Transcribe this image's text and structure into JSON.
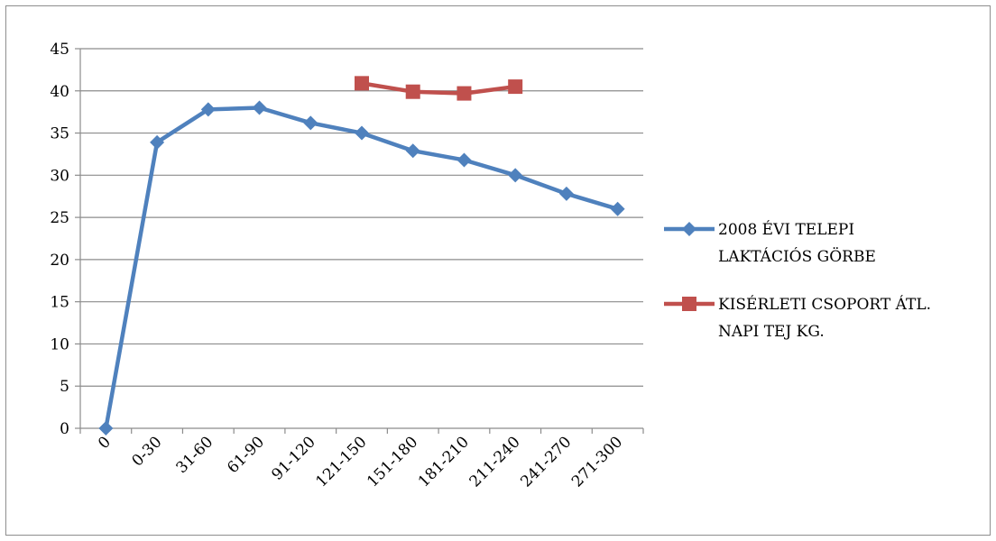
{
  "chart_data": {
    "type": "line",
    "categories": [
      "0",
      "0-30",
      "31-60",
      "61-90",
      "91-120",
      "121-150",
      "151-180",
      "181-210",
      "211-240",
      "241-270",
      "271-300"
    ],
    "ylim": [
      0,
      45
    ],
    "yticks": [
      0,
      5,
      10,
      15,
      20,
      25,
      30,
      35,
      40,
      45
    ],
    "grid": true,
    "legend_position": "right",
    "series": [
      {
        "name_lines": [
          "2008 ÉVI TELEPI",
          "LAKTÁCIÓS GÖRBE"
        ],
        "color": "#4f81bd",
        "marker": "diamond",
        "values": [
          0,
          33.9,
          37.8,
          38.0,
          36.2,
          35.0,
          32.9,
          31.8,
          30.0,
          27.8,
          26.0
        ]
      },
      {
        "name_lines": [
          "KISÉRLETI CSOPORT ÁTL.",
          "NAPI TEJ KG."
        ],
        "color": "#c0504d",
        "marker": "square",
        "values": [
          null,
          null,
          null,
          null,
          null,
          40.9,
          39.9,
          39.7,
          40.5,
          null,
          null
        ]
      }
    ]
  }
}
